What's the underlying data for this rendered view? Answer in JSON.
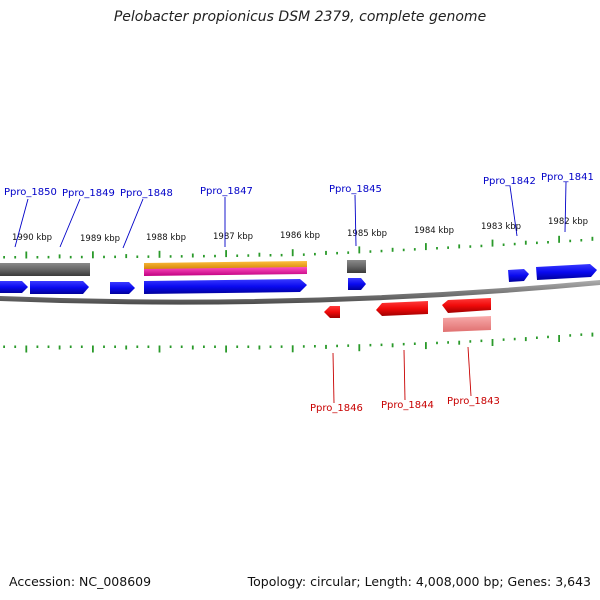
{
  "title": "Pelobacter propionicus DSM 2379, complete genome",
  "accession": "Accession: NC_008609",
  "summary": "Topology: circular; Length: 4,008,000 bp; Genes: 3,643",
  "colors": {
    "forward_gene": "#0a0af0",
    "reverse_gene": "#f00a0a",
    "reverse_gene_light": "#f08888",
    "grey_feature": "#666666",
    "orange_feature": "#f0a000",
    "magenta_feature": "#f020a0",
    "tick": "#2a9a2a",
    "backbone": "#7a7a7a",
    "forward_label": "#0000c8",
    "reverse_label": "#c80000"
  },
  "kbp_labels": [
    "1990 kbp",
    "1989 kbp",
    "1988 kbp",
    "1987 kbp",
    "1986 kbp",
    "1985 kbp",
    "1984 kbp",
    "1983 kbp",
    "1982 kbp"
  ],
  "forward_genes": [
    {
      "name": "Ppro_1850"
    },
    {
      "name": "Ppro_1849"
    },
    {
      "name": "Ppro_1848"
    },
    {
      "name": "Ppro_1847"
    },
    {
      "name": "Ppro_1845"
    },
    {
      "name": "Ppro_1842"
    },
    {
      "name": "Ppro_1841"
    }
  ],
  "reverse_genes": [
    {
      "name": "Ppro_1846"
    },
    {
      "name": "Ppro_1844"
    },
    {
      "name": "Ppro_1843"
    }
  ]
}
